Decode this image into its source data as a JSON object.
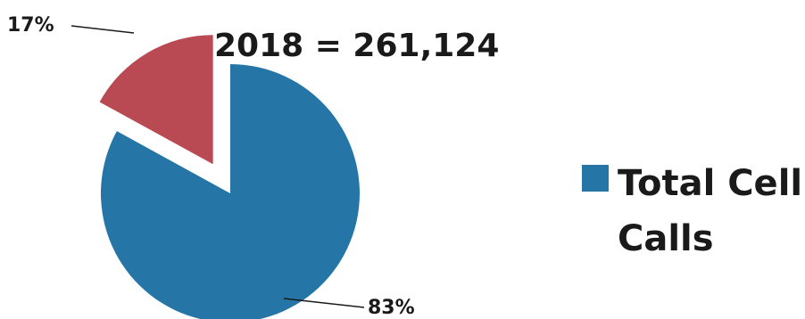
{
  "chart_data": {
    "type": "pie",
    "title": "2018 = 261,124",
    "slices": [
      {
        "label": "Total Cell Calls",
        "value": 83,
        "display": "83%",
        "color": "#2576a6",
        "exploded": false,
        "in_legend": true
      },
      {
        "label": "",
        "value": 17,
        "display": "17%",
        "color": "#b94a53",
        "exploded": true,
        "in_legend": false
      }
    ],
    "legend": {
      "position": "right",
      "items": [
        {
          "label_line1": "Total Cell",
          "label_line2": "Calls",
          "color": "#2576a6"
        }
      ]
    }
  }
}
